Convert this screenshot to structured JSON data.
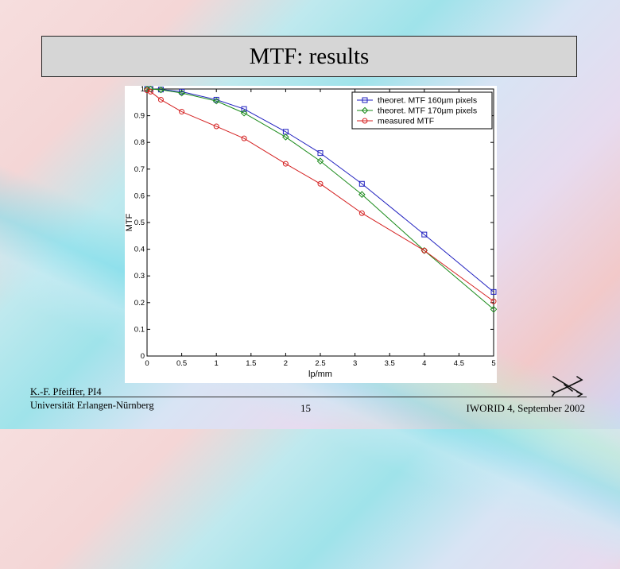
{
  "slide": {
    "title": "MTF: results",
    "author_line1": "K.-F. Pfeiffer, PI4",
    "author_line2": "Universität Erlangen-Nürnberg",
    "page_number": "15",
    "conference": "IWORID 4, September 2002"
  },
  "colors": {
    "series_160": "#1f1fbf",
    "series_170": "#1a8a1a",
    "series_measured": "#d42020"
  },
  "icons": {
    "logo": "institute-logo-icon"
  },
  "chart_data": {
    "type": "line",
    "title": "",
    "xlabel": "lp/mm",
    "ylabel": "MTF",
    "xlim": [
      0,
      5
    ],
    "ylim": [
      0,
      1
    ],
    "x_ticks": [
      "0",
      "0.5",
      "1",
      "1.5",
      "2",
      "2.5",
      "3",
      "3.5",
      "4",
      "4.5",
      "5"
    ],
    "y_ticks": [
      "0",
      "0.1",
      "0.2",
      "0.3",
      "0.4",
      "0.5",
      "0.6",
      "0.7",
      "0.8",
      "0.9",
      "1"
    ],
    "grid": false,
    "legend": "top-right",
    "series": [
      {
        "name": "theoret. MTF 160µm pixels",
        "marker": "square",
        "colorKey": "series_160",
        "x": [
          0.0,
          0.05,
          0.2,
          0.5,
          1.0,
          1.4,
          2.0,
          2.5,
          3.1,
          4.0,
          5.0
        ],
        "y": [
          1.0,
          1.0,
          0.998,
          0.99,
          0.96,
          0.925,
          0.84,
          0.76,
          0.645,
          0.455,
          0.24
        ]
      },
      {
        "name": "theoret. MTF 170µm pixels",
        "marker": "diamond",
        "colorKey": "series_170",
        "x": [
          0.0,
          0.05,
          0.2,
          0.5,
          1.0,
          1.4,
          2.0,
          2.5,
          3.1,
          4.0,
          5.0
        ],
        "y": [
          1.0,
          1.0,
          0.997,
          0.985,
          0.955,
          0.91,
          0.82,
          0.73,
          0.605,
          0.395,
          0.175
        ]
      },
      {
        "name": "measured MTF",
        "marker": "circle",
        "colorKey": "series_measured",
        "x": [
          0.0,
          0.05,
          0.2,
          0.5,
          1.0,
          1.4,
          2.0,
          2.5,
          3.1,
          4.0,
          5.0
        ],
        "y": [
          0.995,
          0.99,
          0.96,
          0.915,
          0.86,
          0.815,
          0.72,
          0.645,
          0.535,
          0.395,
          0.205
        ]
      }
    ]
  }
}
